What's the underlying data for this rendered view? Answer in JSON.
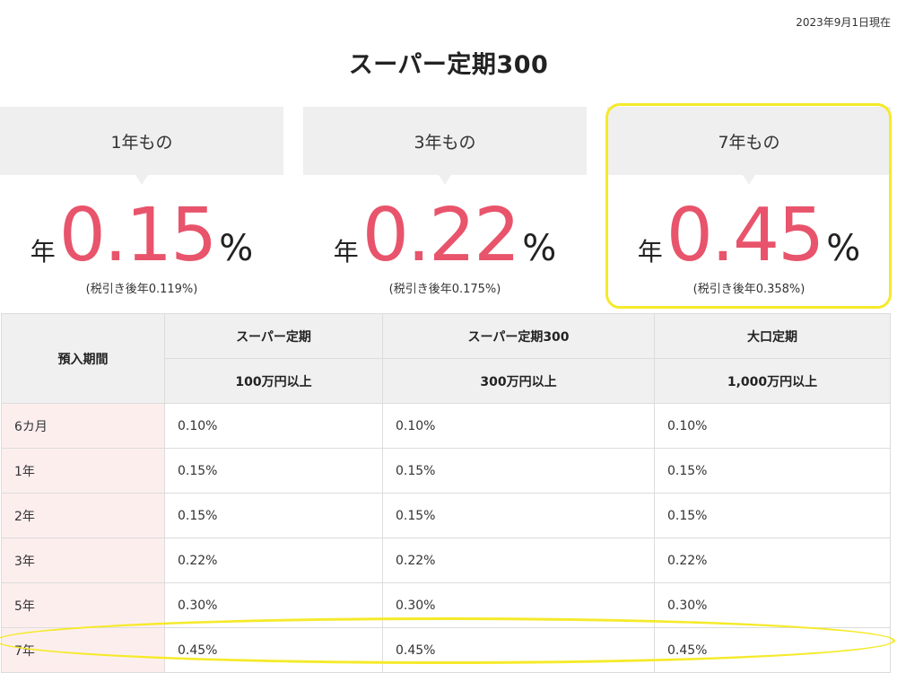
{
  "as_of_date": "2023年9月1日現在",
  "title": "スーパー定期300",
  "cards": [
    {
      "term": "1年もの",
      "prefix": "年",
      "rate": "0.15",
      "unit": "%",
      "after_tax": "(税引き後年0.119%)"
    },
    {
      "term": "3年もの",
      "prefix": "年",
      "rate": "0.22",
      "unit": "%",
      "after_tax": "(税引き後年0.175%)"
    },
    {
      "term": "7年もの",
      "prefix": "年",
      "rate": "0.45",
      "unit": "%",
      "after_tax": "(税引き後年0.358%)"
    }
  ],
  "table": {
    "period_header": "預入期間",
    "columns": [
      {
        "name": "スーパー定期",
        "minimum": "100万円以上"
      },
      {
        "name": "スーパー定期300",
        "minimum": "300万円以上"
      },
      {
        "name": "大口定期",
        "minimum": "1,000万円以上"
      }
    ],
    "rows": [
      {
        "period": "6カ月",
        "values": [
          "0.10%",
          "0.10%",
          "0.10%"
        ]
      },
      {
        "period": "1年",
        "values": [
          "0.15%",
          "0.15%",
          "0.15%"
        ]
      },
      {
        "period": "2年",
        "values": [
          "0.15%",
          "0.15%",
          "0.15%"
        ]
      },
      {
        "period": "3年",
        "values": [
          "0.22%",
          "0.22%",
          "0.22%"
        ]
      },
      {
        "period": "5年",
        "values": [
          "0.30%",
          "0.30%",
          "0.30%"
        ]
      },
      {
        "period": "7年",
        "values": [
          "0.45%",
          "0.45%",
          "0.45%"
        ]
      }
    ]
  },
  "colors": {
    "rate_accent": "#e8546b",
    "highlight": "#f5ea2a",
    "period_bg": "#fdeeee",
    "header_bg": "#f0f0f0"
  }
}
